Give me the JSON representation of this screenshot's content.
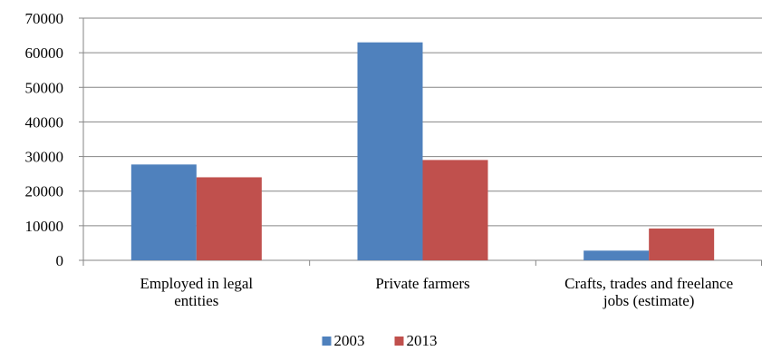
{
  "chart_data": {
    "type": "bar",
    "categories": [
      [
        "Employed in legal",
        "entities"
      ],
      [
        "Private farmers"
      ],
      [
        "Crafts, trades and freelance",
        "jobs (estimate)"
      ]
    ],
    "series": [
      {
        "name": "2003",
        "values": [
          27700,
          63000,
          2800
        ],
        "color": "#4F81BD"
      },
      {
        "name": "2013",
        "values": [
          24000,
          29000,
          9200
        ],
        "color": "#C0504D"
      }
    ],
    "yticks": [
      "0",
      "10000",
      "20000",
      "30000",
      "40000",
      "50000",
      "60000",
      "70000"
    ],
    "ylim": [
      0,
      70000
    ],
    "grid": true,
    "legend_position": "bottom-center"
  }
}
